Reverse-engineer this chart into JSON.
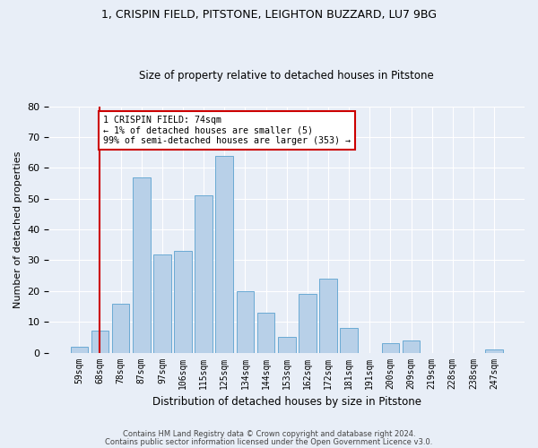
{
  "title1": "1, CRISPIN FIELD, PITSTONE, LEIGHTON BUZZARD, LU7 9BG",
  "title2": "Size of property relative to detached houses in Pitstone",
  "xlabel": "Distribution of detached houses by size in Pitstone",
  "ylabel": "Number of detached properties",
  "bar_labels": [
    "59sqm",
    "68sqm",
    "78sqm",
    "87sqm",
    "97sqm",
    "106sqm",
    "115sqm",
    "125sqm",
    "134sqm",
    "144sqm",
    "153sqm",
    "162sqm",
    "172sqm",
    "181sqm",
    "191sqm",
    "200sqm",
    "209sqm",
    "219sqm",
    "228sqm",
    "238sqm",
    "247sqm"
  ],
  "bar_values": [
    2,
    7,
    16,
    57,
    32,
    33,
    51,
    64,
    20,
    13,
    5,
    19,
    24,
    8,
    0,
    3,
    4,
    0,
    0,
    0,
    1
  ],
  "bar_color": "#b8d0e8",
  "bar_edgecolor": "#6aaad4",
  "vline_x": 1,
  "vline_color": "#cc0000",
  "annotation_text": "1 CRISPIN FIELD: 74sqm\n← 1% of detached houses are smaller (5)\n99% of semi-detached houses are larger (353) →",
  "annotation_box_edgecolor": "#cc0000",
  "ylim": [
    0,
    80
  ],
  "yticks": [
    0,
    10,
    20,
    30,
    40,
    50,
    60,
    70,
    80
  ],
  "footer1": "Contains HM Land Registry data © Crown copyright and database right 2024.",
  "footer2": "Contains public sector information licensed under the Open Government Licence v3.0.",
  "bg_color": "#e8eef7",
  "plot_bg_color": "#e8eef7"
}
